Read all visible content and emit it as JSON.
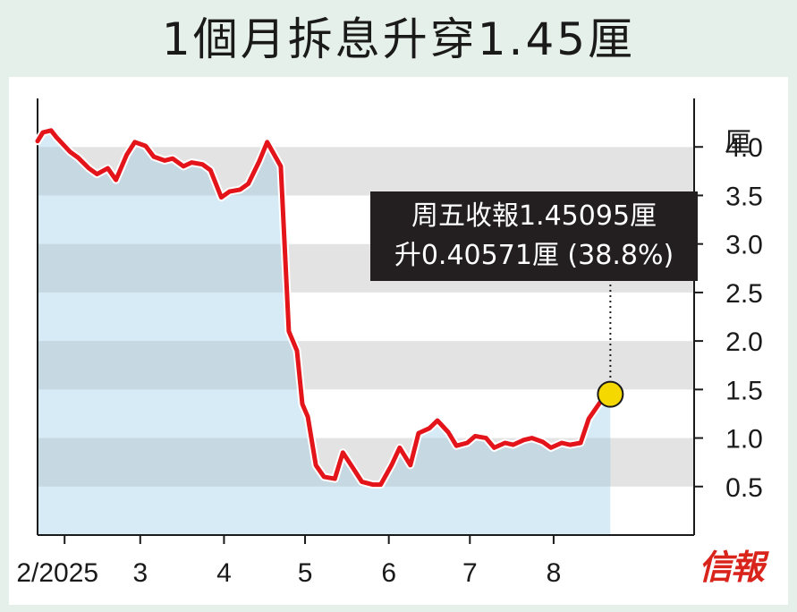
{
  "title": "1個月拆息升穿1.45厘",
  "source_logo": "信報",
  "colors": {
    "line": "#e3151a",
    "band_grey": "#e3e3e3",
    "band_white": "#ffffff",
    "fill_blue": "#d7ebf6",
    "fill_blue_dark": "#c6d8e2",
    "marker": "#f4d800",
    "annotation_bg": "#231f20"
  },
  "chart_data": {
    "type": "line",
    "title": "1個月拆息升穿1.45厘",
    "ylabel": "厘",
    "ylim": [
      0.0,
      4.5
    ],
    "yticks": [
      "0.5",
      "1.0",
      "1.5",
      "2.0",
      "2.5",
      "3.0",
      "3.5",
      "4.0"
    ],
    "xticks": [
      "2/2025",
      "3",
      "4",
      "5",
      "6",
      "7",
      "8"
    ],
    "grid": "horizontal bands",
    "annotation": {
      "line1": "周五收報1.45095厘",
      "line2": "升0.40571厘 (38.8%)",
      "value": 1.45095
    },
    "series": [
      {
        "x": [
          "2025-01-22",
          "2025-01-24",
          "2025-01-27",
          "2025-01-29",
          "2025-02-03",
          "2025-02-06",
          "2025-02-10",
          "2025-02-13",
          "2025-02-17",
          "2025-02-20",
          "2025-02-24",
          "2025-02-27",
          "2025-03-03",
          "2025-03-06",
          "2025-03-10",
          "2025-03-13",
          "2025-03-17",
          "2025-03-20",
          "2025-03-24",
          "2025-03-27",
          "2025-03-31",
          "2025-04-03",
          "2025-04-07",
          "2025-04-10",
          "2025-04-14",
          "2025-04-17",
          "2025-04-22",
          "2025-04-25",
          "2025-04-28",
          "2025-04-30",
          "2025-05-02",
          "2025-05-05",
          "2025-05-08",
          "2025-05-12",
          "2025-05-15",
          "2025-05-19",
          "2025-05-22",
          "2025-05-26",
          "2025-05-29",
          "2025-06-02",
          "2025-06-05",
          "2025-06-09",
          "2025-06-12",
          "2025-06-16",
          "2025-06-19",
          "2025-06-23",
          "2025-06-26",
          "2025-06-30",
          "2025-07-03",
          "2025-07-07",
          "2025-07-10",
          "2025-07-14",
          "2025-07-17",
          "2025-07-21",
          "2025-07-24",
          "2025-07-28",
          "2025-07-31",
          "2025-08-04",
          "2025-08-07",
          "2025-08-11",
          "2025-08-14",
          "2025-08-18",
          "2025-08-22"
        ],
        "y": [
          4.06,
          4.15,
          4.17,
          4.1,
          3.95,
          3.89,
          3.78,
          3.72,
          3.78,
          3.66,
          3.92,
          4.05,
          4.01,
          3.9,
          3.86,
          3.88,
          3.8,
          3.84,
          3.82,
          3.76,
          3.48,
          3.54,
          3.56,
          3.62,
          3.85,
          4.05,
          3.8,
          2.1,
          1.9,
          1.35,
          1.22,
          0.72,
          0.6,
          0.58,
          0.85,
          0.68,
          0.55,
          0.52,
          0.52,
          0.72,
          0.9,
          0.72,
          1.05,
          1.1,
          1.18,
          1.06,
          0.92,
          0.95,
          1.02,
          1.0,
          0.9,
          0.95,
          0.93,
          0.98,
          1.0,
          0.96,
          0.9,
          0.95,
          0.93,
          0.95,
          1.2,
          1.36,
          1.45095
        ]
      }
    ]
  }
}
